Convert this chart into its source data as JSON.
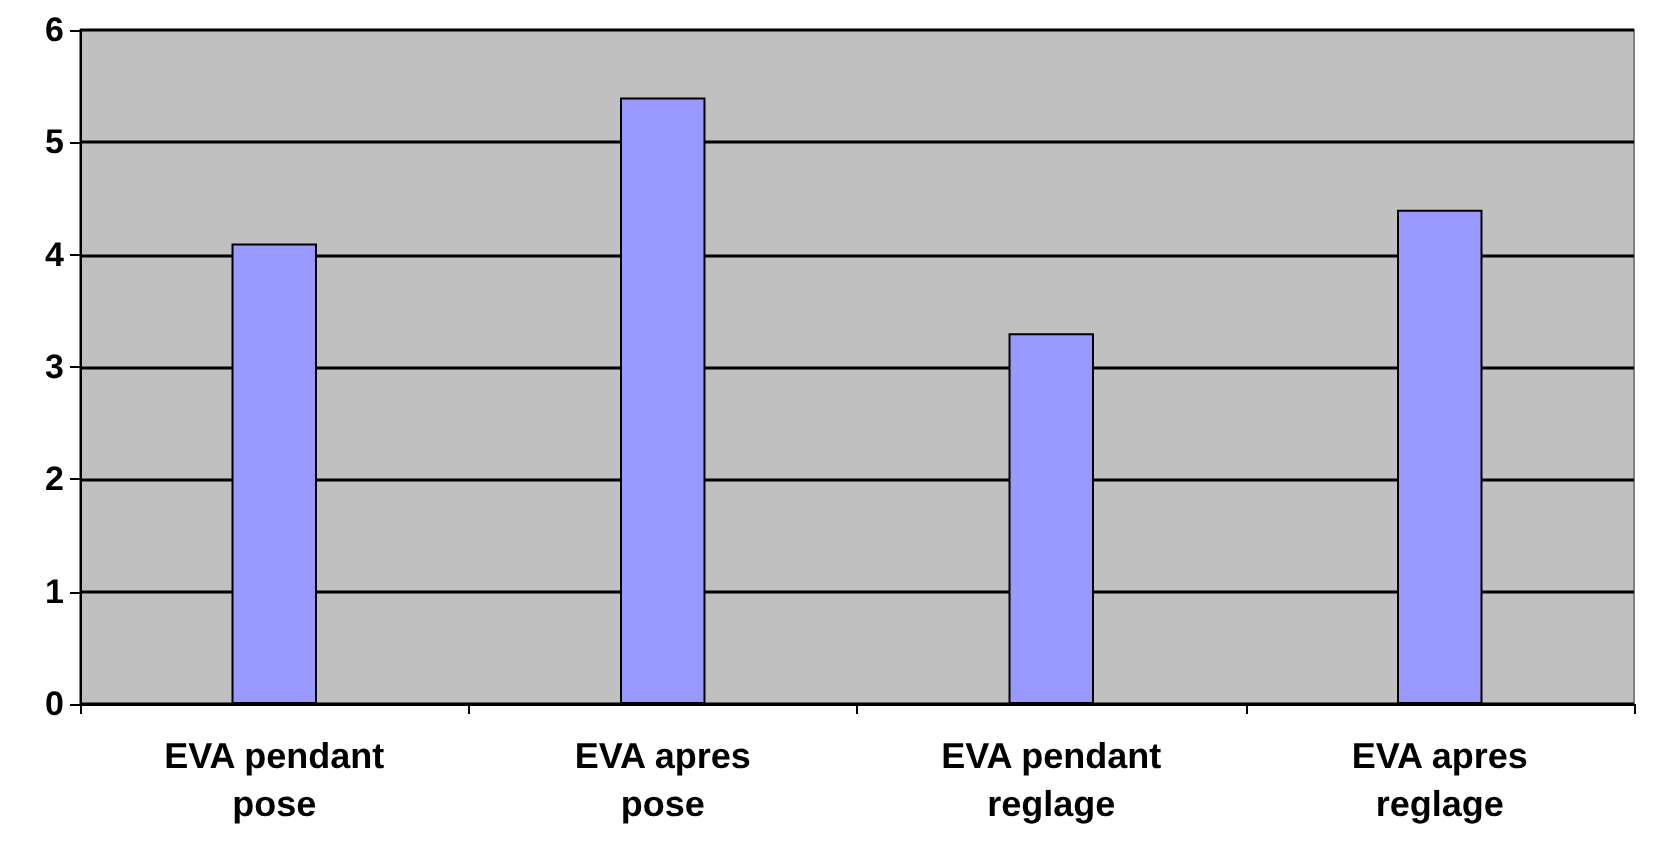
{
  "chart_data": {
    "type": "bar",
    "categories": [
      "EVA pendant\npose",
      "EVA apres\npose",
      "EVA pendant\nreglage",
      "EVA apres\nreglage"
    ],
    "values": [
      4.1,
      5.4,
      3.3,
      4.4
    ],
    "color": "#9999ff",
    "ylim": [
      0,
      6
    ],
    "yticks": [
      0,
      1,
      2,
      3,
      4,
      5,
      6
    ],
    "grid": "y"
  }
}
